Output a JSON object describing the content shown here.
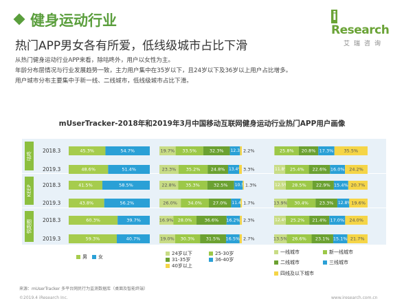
{
  "header": {
    "title": "健身运动行业",
    "subtitle": "热门APP男女各有所爱，低线级城市占比下滑",
    "description": [
      "从热门健身运动行业APP来看，除咕咚外，用户以女性为主。",
      "年龄分布层情况与行业发展趋势一致，主力用户集中在35岁以下，且24岁以下及36岁以上用户占比增多。",
      "用户城市分布主要集中于新一线、二线城市，低线级城市占比下滑。"
    ]
  },
  "logo": {
    "brand_i": "i",
    "brand": "Research",
    "sub": "艾瑞咨询"
  },
  "footer": {
    "source": "来源：mUserTracker 多平台网民行为监测数据库（桌面及智能终端）",
    "copyright": "©2019.4 iResearch Inc.",
    "website": "www.iresearch.com.cn"
  },
  "colors": {
    "title_green": "#5a9e3c",
    "male": "#a6cc4d",
    "female": "#2aa0d6",
    "band_bg": "#e8f1f8",
    "app_tag": "#8cbf3f"
  },
  "chart_data": {
    "title": "mUserTracker-2018年和2019年3月中国移动互联网健身运动行业热门APP用户画像",
    "type": "bar",
    "stacked": "100%",
    "orientation": "horizontal",
    "apps": [
      "咕咚",
      "KEEP",
      "悦跑圈"
    ],
    "years": [
      "2018.3",
      "2019.3"
    ],
    "groups": [
      {
        "name": "性别",
        "series": [
          {
            "name": "男",
            "color": "#a6cc4d"
          },
          {
            "name": "女",
            "color": "#2aa0d6"
          }
        ],
        "legend": [
          "男",
          "女"
        ],
        "rows": [
          {
            "values": [
              45.3,
              54.7
            ],
            "labels": [
              "45.3%",
              "54.7%"
            ]
          },
          {
            "values": [
              48.6,
              51.4
            ],
            "labels": [
              "48.6%",
              "51.4%"
            ]
          },
          {
            "values": [
              41.5,
              58.5
            ],
            "labels": [
              "41.5%",
              "58.5%"
            ]
          },
          {
            "values": [
              43.8,
              56.2
            ],
            "labels": [
              "43.8%",
              "56.2%"
            ]
          },
          {
            "values": [
              60.3,
              39.7
            ],
            "labels": [
              "60.3%",
              "39.7%"
            ]
          },
          {
            "values": [
              59.3,
              40.7
            ],
            "labels": [
              "59.3%",
              "40.7%"
            ]
          }
        ]
      },
      {
        "name": "年龄",
        "series": [
          {
            "name": "24岁以下",
            "color": "#c8dc85"
          },
          {
            "name": "25-30岁",
            "color": "#9cc848"
          },
          {
            "name": "31-35岁",
            "color": "#6ba131"
          },
          {
            "name": "36-40岁",
            "color": "#2aa0d6"
          },
          {
            "name": "40岁以上",
            "color": "#f5d547"
          }
        ],
        "legend": [
          "24岁以下",
          "25-30岁",
          "31-35岁",
          "36-40岁",
          "40岁以上"
        ],
        "rows": [
          {
            "values": [
              19.7,
              33.5,
              32.3,
              12.3,
              2.2
            ],
            "labels": [
              "19.7%",
              "33.5%",
              "32.3%",
              "12.3%",
              "2.2%"
            ]
          },
          {
            "values": [
              23.3,
              35.2,
              24.8,
              13.4,
              3.3
            ],
            "labels": [
              "23.3%",
              "35.2%",
              "24.8%",
              "13.4%",
              "3.3%"
            ]
          },
          {
            "values": [
              22.8,
              35.3,
              32.5,
              10.5,
              1.3
            ],
            "labels": [
              "22.8%",
              "35.3%",
              "32.5%",
              "10.5%",
              "1.3%"
            ]
          },
          {
            "values": [
              26.0,
              34.0,
              27.0,
              11.4,
              1.7
            ],
            "labels": [
              "26.0%",
              "34.0%",
              "27.0%",
              "11.4%",
              "1.7%"
            ]
          },
          {
            "values": [
              16.9,
              28.0,
              36.6,
              16.2,
              2.3
            ],
            "labels": [
              "16.9%",
              "28.0%",
              "36.6%",
              "16.2%",
              "2.3%"
            ]
          },
          {
            "values": [
              19.0,
              30.3,
              31.5,
              16.5,
              2.7
            ],
            "labels": [
              "19.0%",
              "30.3%",
              "31.5%",
              "16.5%",
              "2.7%"
            ]
          }
        ]
      },
      {
        "name": "城市",
        "series": [
          {
            "name": "一线城市",
            "color": "#c8dc85"
          },
          {
            "name": "新一线城市",
            "color": "#9cc848"
          },
          {
            "name": "二线城市",
            "color": "#6ba131"
          },
          {
            "name": "三线城市",
            "color": "#2aa0d6"
          },
          {
            "name": "四线及以下城市",
            "color": "#f5d547"
          }
        ],
        "legend": [
          "一线城市",
          "新一线城市",
          "二线城市",
          "三线城市",
          "四线及以下城市"
        ],
        "rows": [
          {
            "values": [
              0.6,
              25.8,
              20.8,
              17.3,
              35.5
            ],
            "labels": [
              "0.6%",
              "25.8%",
              "20.8%",
              "17.3%",
              "35.5%"
            ]
          },
          {
            "values": [
              11.8,
              25.4,
              22.6,
              16.0,
              24.2
            ],
            "labels": [
              "11.8%",
              "25.4%",
              "22.6%",
              "16.0%",
              "24.2%"
            ]
          },
          {
            "values": [
              12.5,
              28.5,
              22.9,
              15.4,
              20.7
            ],
            "labels": [
              "12.5%",
              "28.5%",
              "22.9%",
              "15.4%",
              "20.7%"
            ]
          },
          {
            "values": [
              13.9,
              30.4,
              23.3,
              12.8,
              19.6
            ],
            "labels": [
              "13.9%",
              "30.4%",
              "23.3%",
              "12.8%",
              "19.6%"
            ]
          },
          {
            "values": [
              12.4,
              25.2,
              21.4,
              17.0,
              24.0
            ],
            "labels": [
              "12.4%",
              "25.2%",
              "21.4%",
              "17.0%",
              "24.0%"
            ]
          },
          {
            "values": [
              13.5,
              26.6,
              23.1,
              15.1,
              21.7
            ],
            "labels": [
              "13.5%",
              "26.6%",
              "23.1%",
              "15.1%",
              "21.7%"
            ]
          }
        ]
      }
    ]
  }
}
